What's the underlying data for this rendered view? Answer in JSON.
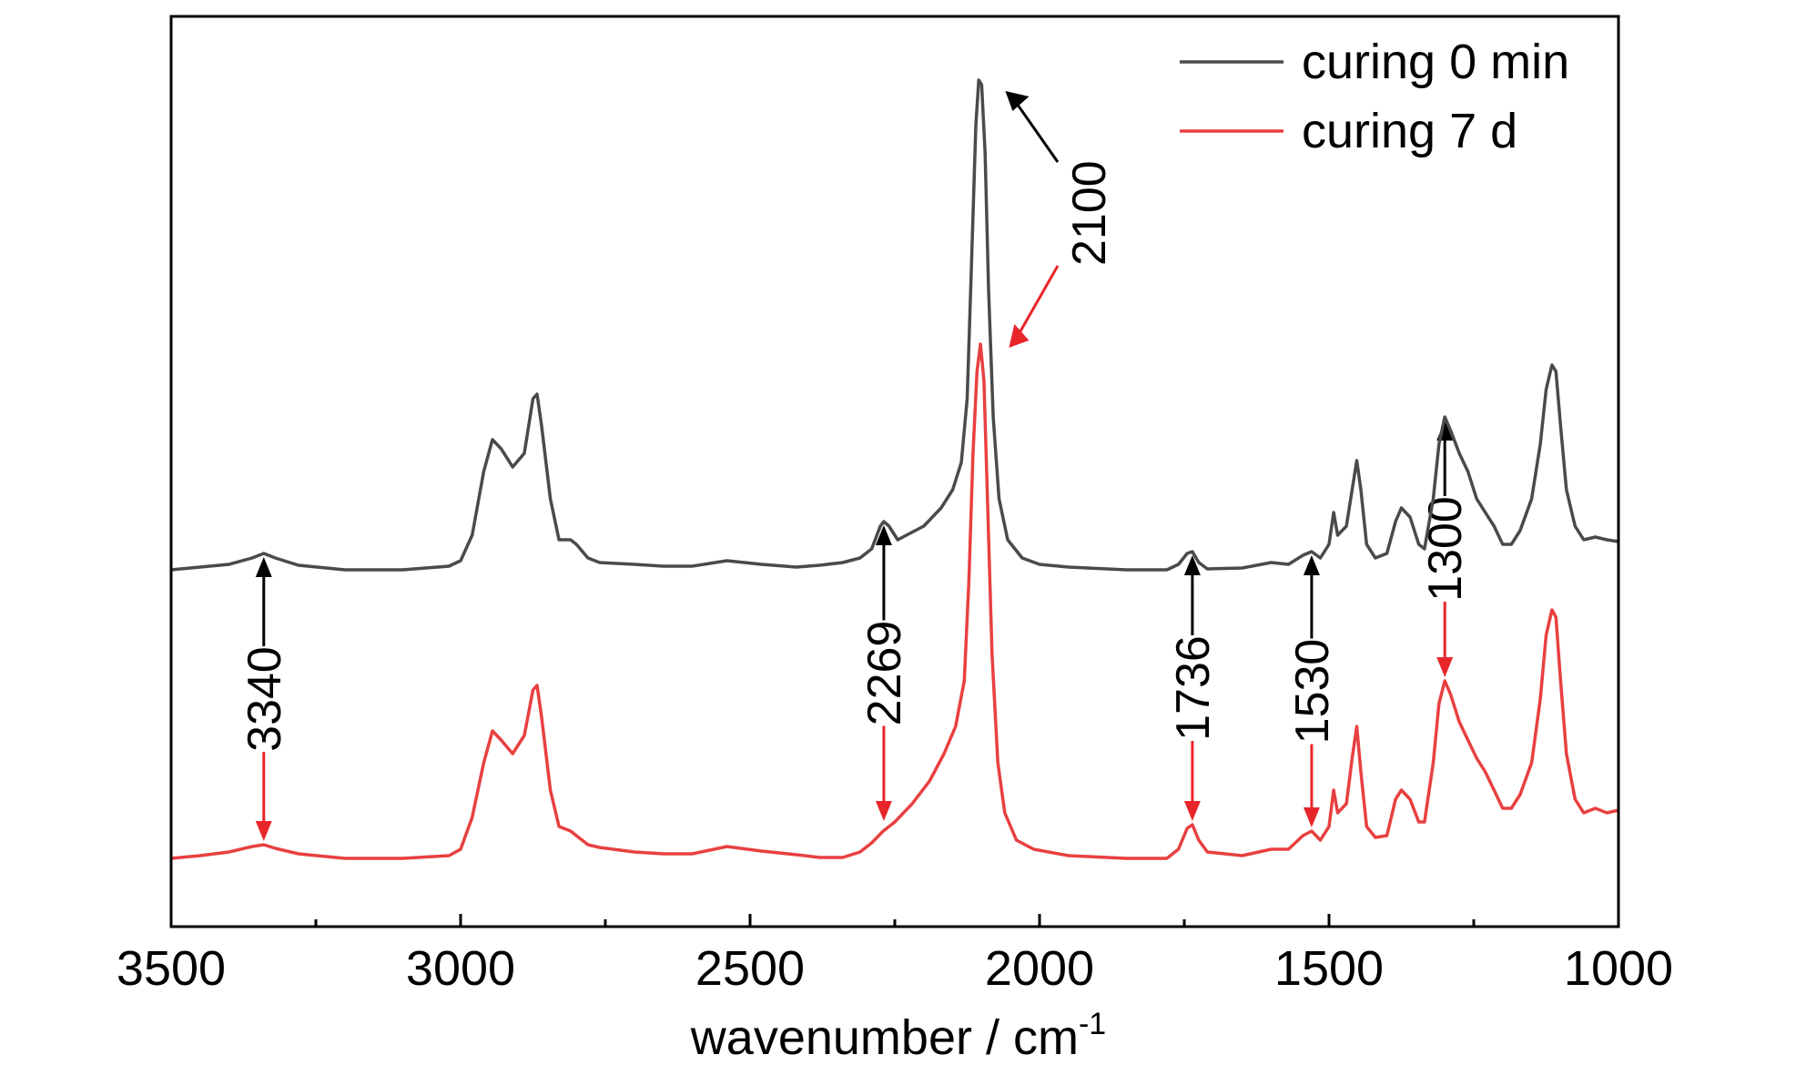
{
  "chart_data": {
    "type": "line",
    "title": "",
    "xlabel": "wavenumber / cm",
    "xlabel_sup": "-1",
    "ylabel": "",
    "xlim": [
      3500,
      1000
    ],
    "x_reversed": true,
    "ylim": [
      0,
      1
    ],
    "yticks_shown": false,
    "grid": false,
    "legend_position": "top-right",
    "xticks": [
      3500,
      3000,
      2500,
      2000,
      1500,
      1000
    ],
    "xtick_labels": [
      "3500",
      "3000",
      "2500",
      "2000",
      "1500",
      "1000"
    ],
    "series": [
      {
        "name": "curing 0 min",
        "color": "#4a4a4a",
        "points": [
          [
            3500,
            0.392
          ],
          [
            3450,
            0.395
          ],
          [
            3400,
            0.398
          ],
          [
            3360,
            0.405
          ],
          [
            3340,
            0.41
          ],
          [
            3320,
            0.405
          ],
          [
            3280,
            0.397
          ],
          [
            3200,
            0.392
          ],
          [
            3100,
            0.392
          ],
          [
            3020,
            0.396
          ],
          [
            3000,
            0.402
          ],
          [
            2980,
            0.43
          ],
          [
            2960,
            0.5
          ],
          [
            2945,
            0.535
          ],
          [
            2930,
            0.525
          ],
          [
            2910,
            0.505
          ],
          [
            2890,
            0.52
          ],
          [
            2875,
            0.58
          ],
          [
            2868,
            0.585
          ],
          [
            2860,
            0.55
          ],
          [
            2845,
            0.47
          ],
          [
            2830,
            0.425
          ],
          [
            2810,
            0.425
          ],
          [
            2800,
            0.42
          ],
          [
            2780,
            0.405
          ],
          [
            2760,
            0.4
          ],
          [
            2700,
            0.398
          ],
          [
            2650,
            0.396
          ],
          [
            2600,
            0.396
          ],
          [
            2540,
            0.402
          ],
          [
            2480,
            0.398
          ],
          [
            2420,
            0.395
          ],
          [
            2380,
            0.397
          ],
          [
            2340,
            0.4
          ],
          [
            2310,
            0.405
          ],
          [
            2290,
            0.415
          ],
          [
            2275,
            0.44
          ],
          [
            2269,
            0.445
          ],
          [
            2260,
            0.44
          ],
          [
            2245,
            0.425
          ],
          [
            2230,
            0.43
          ],
          [
            2200,
            0.44
          ],
          [
            2170,
            0.46
          ],
          [
            2150,
            0.48
          ],
          [
            2135,
            0.51
          ],
          [
            2125,
            0.58
          ],
          [
            2118,
            0.72
          ],
          [
            2110,
            0.88
          ],
          [
            2105,
            0.93
          ],
          [
            2100,
            0.925
          ],
          [
            2094,
            0.85
          ],
          [
            2088,
            0.7
          ],
          [
            2080,
            0.56
          ],
          [
            2070,
            0.47
          ],
          [
            2055,
            0.425
          ],
          [
            2030,
            0.405
          ],
          [
            2000,
            0.398
          ],
          [
            1950,
            0.395
          ],
          [
            1850,
            0.392
          ],
          [
            1780,
            0.392
          ],
          [
            1760,
            0.398
          ],
          [
            1745,
            0.41
          ],
          [
            1736,
            0.412
          ],
          [
            1725,
            0.4
          ],
          [
            1710,
            0.393
          ],
          [
            1650,
            0.394
          ],
          [
            1600,
            0.4
          ],
          [
            1570,
            0.398
          ],
          [
            1545,
            0.408
          ],
          [
            1530,
            0.412
          ],
          [
            1515,
            0.405
          ],
          [
            1500,
            0.42
          ],
          [
            1492,
            0.455
          ],
          [
            1485,
            0.43
          ],
          [
            1470,
            0.44
          ],
          [
            1460,
            0.48
          ],
          [
            1452,
            0.512
          ],
          [
            1445,
            0.48
          ],
          [
            1435,
            0.42
          ],
          [
            1420,
            0.405
          ],
          [
            1400,
            0.41
          ],
          [
            1385,
            0.445
          ],
          [
            1375,
            0.46
          ],
          [
            1360,
            0.45
          ],
          [
            1345,
            0.42
          ],
          [
            1335,
            0.415
          ],
          [
            1320,
            0.47
          ],
          [
            1310,
            0.53
          ],
          [
            1300,
            0.56
          ],
          [
            1290,
            0.545
          ],
          [
            1275,
            0.52
          ],
          [
            1260,
            0.5
          ],
          [
            1245,
            0.47
          ],
          [
            1230,
            0.455
          ],
          [
            1215,
            0.44
          ],
          [
            1200,
            0.42
          ],
          [
            1185,
            0.42
          ],
          [
            1170,
            0.435
          ],
          [
            1150,
            0.47
          ],
          [
            1135,
            0.53
          ],
          [
            1125,
            0.59
          ],
          [
            1115,
            0.617
          ],
          [
            1108,
            0.61
          ],
          [
            1100,
            0.55
          ],
          [
            1090,
            0.48
          ],
          [
            1075,
            0.44
          ],
          [
            1060,
            0.425
          ],
          [
            1040,
            0.428
          ],
          [
            1020,
            0.425
          ],
          [
            1000,
            0.423
          ]
        ]
      },
      {
        "name": "curing 7 d",
        "color": "#e84040",
        "points": [
          [
            3500,
            0.075
          ],
          [
            3450,
            0.078
          ],
          [
            3400,
            0.082
          ],
          [
            3360,
            0.088
          ],
          [
            3340,
            0.09
          ],
          [
            3320,
            0.086
          ],
          [
            3280,
            0.08
          ],
          [
            3200,
            0.075
          ],
          [
            3100,
            0.075
          ],
          [
            3020,
            0.078
          ],
          [
            3000,
            0.085
          ],
          [
            2980,
            0.12
          ],
          [
            2960,
            0.18
          ],
          [
            2945,
            0.215
          ],
          [
            2930,
            0.205
          ],
          [
            2910,
            0.19
          ],
          [
            2890,
            0.21
          ],
          [
            2875,
            0.26
          ],
          [
            2868,
            0.265
          ],
          [
            2860,
            0.23
          ],
          [
            2845,
            0.15
          ],
          [
            2830,
            0.11
          ],
          [
            2810,
            0.105
          ],
          [
            2800,
            0.1
          ],
          [
            2780,
            0.09
          ],
          [
            2760,
            0.087
          ],
          [
            2700,
            0.082
          ],
          [
            2650,
            0.08
          ],
          [
            2600,
            0.08
          ],
          [
            2540,
            0.088
          ],
          [
            2480,
            0.083
          ],
          [
            2420,
            0.079
          ],
          [
            2380,
            0.076
          ],
          [
            2340,
            0.076
          ],
          [
            2310,
            0.082
          ],
          [
            2290,
            0.092
          ],
          [
            2270,
            0.105
          ],
          [
            2250,
            0.115
          ],
          [
            2220,
            0.135
          ],
          [
            2190,
            0.16
          ],
          [
            2165,
            0.19
          ],
          [
            2145,
            0.22
          ],
          [
            2130,
            0.27
          ],
          [
            2122,
            0.38
          ],
          [
            2115,
            0.52
          ],
          [
            2108,
            0.61
          ],
          [
            2102,
            0.64
          ],
          [
            2096,
            0.6
          ],
          [
            2090,
            0.47
          ],
          [
            2082,
            0.3
          ],
          [
            2072,
            0.18
          ],
          [
            2060,
            0.125
          ],
          [
            2040,
            0.095
          ],
          [
            2010,
            0.085
          ],
          [
            1950,
            0.078
          ],
          [
            1850,
            0.075
          ],
          [
            1780,
            0.075
          ],
          [
            1760,
            0.085
          ],
          [
            1745,
            0.108
          ],
          [
            1736,
            0.112
          ],
          [
            1725,
            0.095
          ],
          [
            1710,
            0.082
          ],
          [
            1650,
            0.078
          ],
          [
            1600,
            0.085
          ],
          [
            1570,
            0.085
          ],
          [
            1545,
            0.1
          ],
          [
            1530,
            0.105
          ],
          [
            1515,
            0.095
          ],
          [
            1500,
            0.11
          ],
          [
            1492,
            0.15
          ],
          [
            1485,
            0.125
          ],
          [
            1470,
            0.135
          ],
          [
            1460,
            0.185
          ],
          [
            1452,
            0.22
          ],
          [
            1445,
            0.17
          ],
          [
            1435,
            0.11
          ],
          [
            1420,
            0.098
          ],
          [
            1400,
            0.1
          ],
          [
            1385,
            0.14
          ],
          [
            1375,
            0.15
          ],
          [
            1360,
            0.14
          ],
          [
            1345,
            0.115
          ],
          [
            1335,
            0.115
          ],
          [
            1320,
            0.18
          ],
          [
            1310,
            0.245
          ],
          [
            1300,
            0.27
          ],
          [
            1290,
            0.255
          ],
          [
            1275,
            0.225
          ],
          [
            1260,
            0.205
          ],
          [
            1245,
            0.185
          ],
          [
            1230,
            0.17
          ],
          [
            1215,
            0.15
          ],
          [
            1200,
            0.13
          ],
          [
            1185,
            0.13
          ],
          [
            1170,
            0.145
          ],
          [
            1150,
            0.18
          ],
          [
            1135,
            0.25
          ],
          [
            1125,
            0.32
          ],
          [
            1115,
            0.348
          ],
          [
            1108,
            0.34
          ],
          [
            1100,
            0.27
          ],
          [
            1090,
            0.19
          ],
          [
            1075,
            0.14
          ],
          [
            1060,
            0.125
          ],
          [
            1040,
            0.13
          ],
          [
            1020,
            0.125
          ],
          [
            1000,
            0.128
          ]
        ]
      }
    ],
    "annotations": [
      {
        "label": "3340",
        "x": 3340,
        "black_y": 0.41,
        "red_y": 0.09
      },
      {
        "label": "2269",
        "x": 2269,
        "black_y": 0.445,
        "red_y": 0.112
      },
      {
        "label": "1736",
        "x": 1736,
        "black_y": 0.412,
        "red_y": 0.112
      },
      {
        "label": "1530",
        "x": 1530,
        "black_y": 0.412,
        "red_y": 0.105
      },
      {
        "label": "1300",
        "x": 1300,
        "black_y": 0.56,
        "red_y": 0.27
      },
      {
        "label": "2100",
        "x": 2100,
        "black_y": 0.93,
        "red_y": 0.64
      }
    ]
  }
}
